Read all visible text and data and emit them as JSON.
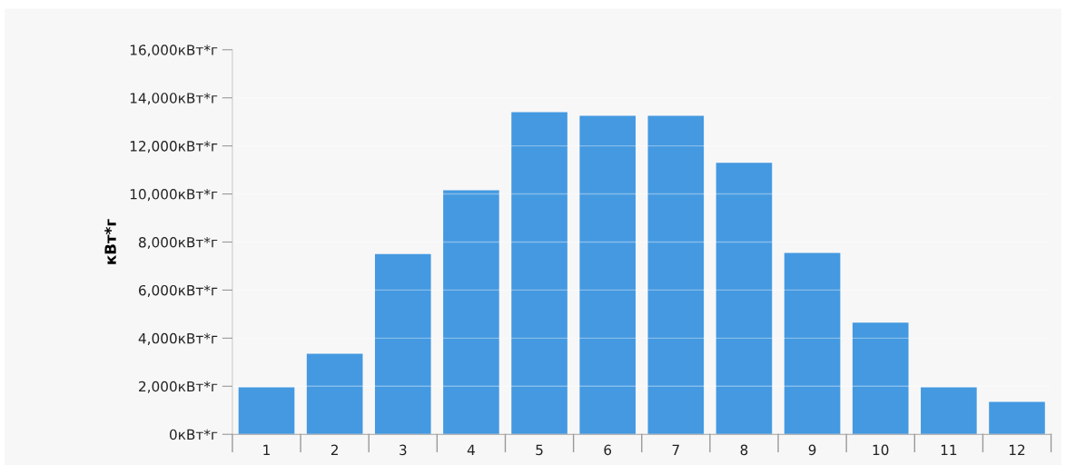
{
  "chart_data": {
    "type": "bar",
    "ylabel": "кВт*г",
    "categories": [
      "1",
      "2",
      "3",
      "4",
      "5",
      "6",
      "7",
      "8",
      "9",
      "10",
      "11",
      "12"
    ],
    "values": [
      1950,
      3350,
      7500,
      10150,
      13400,
      13250,
      13250,
      11300,
      7550,
      4650,
      1950,
      1350
    ],
    "color": "#4499e1",
    "ylim": [
      0,
      16000
    ],
    "yticks": [
      {
        "value": 0,
        "label": "0кВт*г"
      },
      {
        "value": 2000,
        "label": "2,000кВт*г"
      },
      {
        "value": 4000,
        "label": "4,000кВт*г"
      },
      {
        "value": 6000,
        "label": "6,000кВт*г"
      },
      {
        "value": 8000,
        "label": "8,000кВт*г"
      },
      {
        "value": 10000,
        "label": "10,000кВт*г"
      },
      {
        "value": 12000,
        "label": "12,000кВт*г"
      },
      {
        "value": 14000,
        "label": "14,000кВт*г"
      },
      {
        "value": 16000,
        "label": "16,000кВт*г"
      }
    ],
    "grid": "y"
  }
}
